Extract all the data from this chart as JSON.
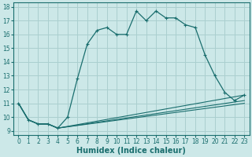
{
  "xlabel": "Humidex (Indice chaleur)",
  "bg_color": "#cce8e8",
  "grid_color": "#aacfcf",
  "line_color": "#1a6e6e",
  "xlim": [
    -0.5,
    23.5
  ],
  "ylim": [
    8.7,
    18.3
  ],
  "xticks": [
    0,
    1,
    2,
    3,
    4,
    5,
    6,
    7,
    8,
    9,
    10,
    11,
    12,
    13,
    14,
    15,
    16,
    17,
    18,
    19,
    20,
    21,
    22,
    23
  ],
  "yticks": [
    9,
    10,
    11,
    12,
    13,
    14,
    15,
    16,
    17,
    18
  ],
  "main_x": [
    0,
    1,
    2,
    3,
    4,
    5,
    6,
    7,
    8,
    9,
    10,
    11,
    12,
    13,
    14,
    15,
    16,
    17,
    18,
    19,
    20,
    21,
    22,
    23
  ],
  "main_y": [
    11.0,
    9.8,
    9.5,
    9.5,
    9.2,
    10.0,
    12.8,
    15.3,
    16.3,
    16.5,
    16.0,
    16.0,
    17.7,
    17.0,
    17.7,
    17.2,
    17.2,
    16.7,
    16.5,
    14.5,
    13.0,
    11.8,
    11.2,
    11.6
  ],
  "line2_x": [
    0,
    1,
    2,
    3,
    4,
    23
  ],
  "line2_y": [
    11.0,
    9.8,
    9.5,
    9.5,
    9.2,
    11.6
  ],
  "line3_x": [
    0,
    1,
    2,
    3,
    4,
    23
  ],
  "line3_y": [
    11.0,
    9.8,
    9.5,
    9.5,
    9.2,
    11.2
  ],
  "line4_x": [
    0,
    1,
    2,
    3,
    4,
    23
  ],
  "line4_y": [
    11.0,
    9.8,
    9.5,
    9.5,
    9.2,
    11.0
  ],
  "xlabel_fontsize": 7,
  "tick_fontsize": 5.5
}
